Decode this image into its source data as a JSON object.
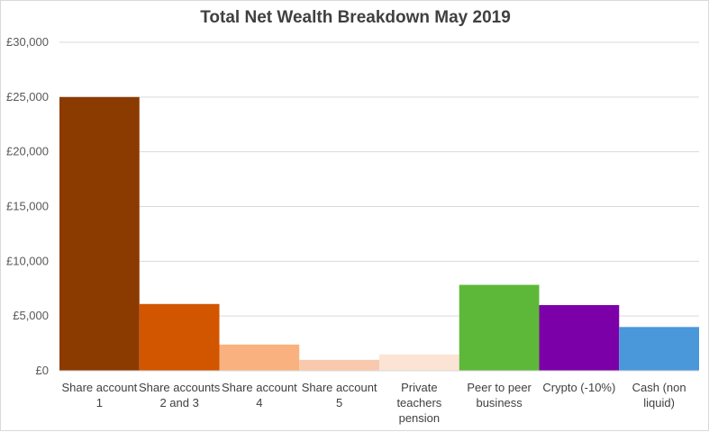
{
  "chart_data": {
    "type": "bar",
    "title": "Total Net Wealth Breakdown May 2019",
    "xlabel": "",
    "ylabel": "",
    "ylim": [
      0,
      30000
    ],
    "y_ticks": [
      0,
      5000,
      10000,
      15000,
      20000,
      25000,
      30000
    ],
    "y_tick_labels": [
      "£0",
      "£5,000",
      "£10,000",
      "£15,000",
      "£20,000",
      "£25,000",
      "£30,000"
    ],
    "grid": true,
    "legend": "none",
    "categories": [
      [
        "Share account",
        "1"
      ],
      [
        "Share accounts",
        "2 and 3"
      ],
      [
        "Share account",
        "4"
      ],
      [
        "Share account",
        "5"
      ],
      [
        "Private",
        "teachers",
        "pension"
      ],
      [
        "Peer to peer",
        "business"
      ],
      [
        "Crypto (-10%)"
      ],
      [
        "Cash (non",
        "liquid)"
      ]
    ],
    "values": [
      25000,
      6100,
      2400,
      1000,
      1500,
      7850,
      6000,
      4000
    ],
    "colors": [
      "#8B3A00",
      "#D25500",
      "#F9B27F",
      "#F8C9AE",
      "#FCE4D4",
      "#5DB83A",
      "#7B00A8",
      "#4A97DA"
    ]
  }
}
